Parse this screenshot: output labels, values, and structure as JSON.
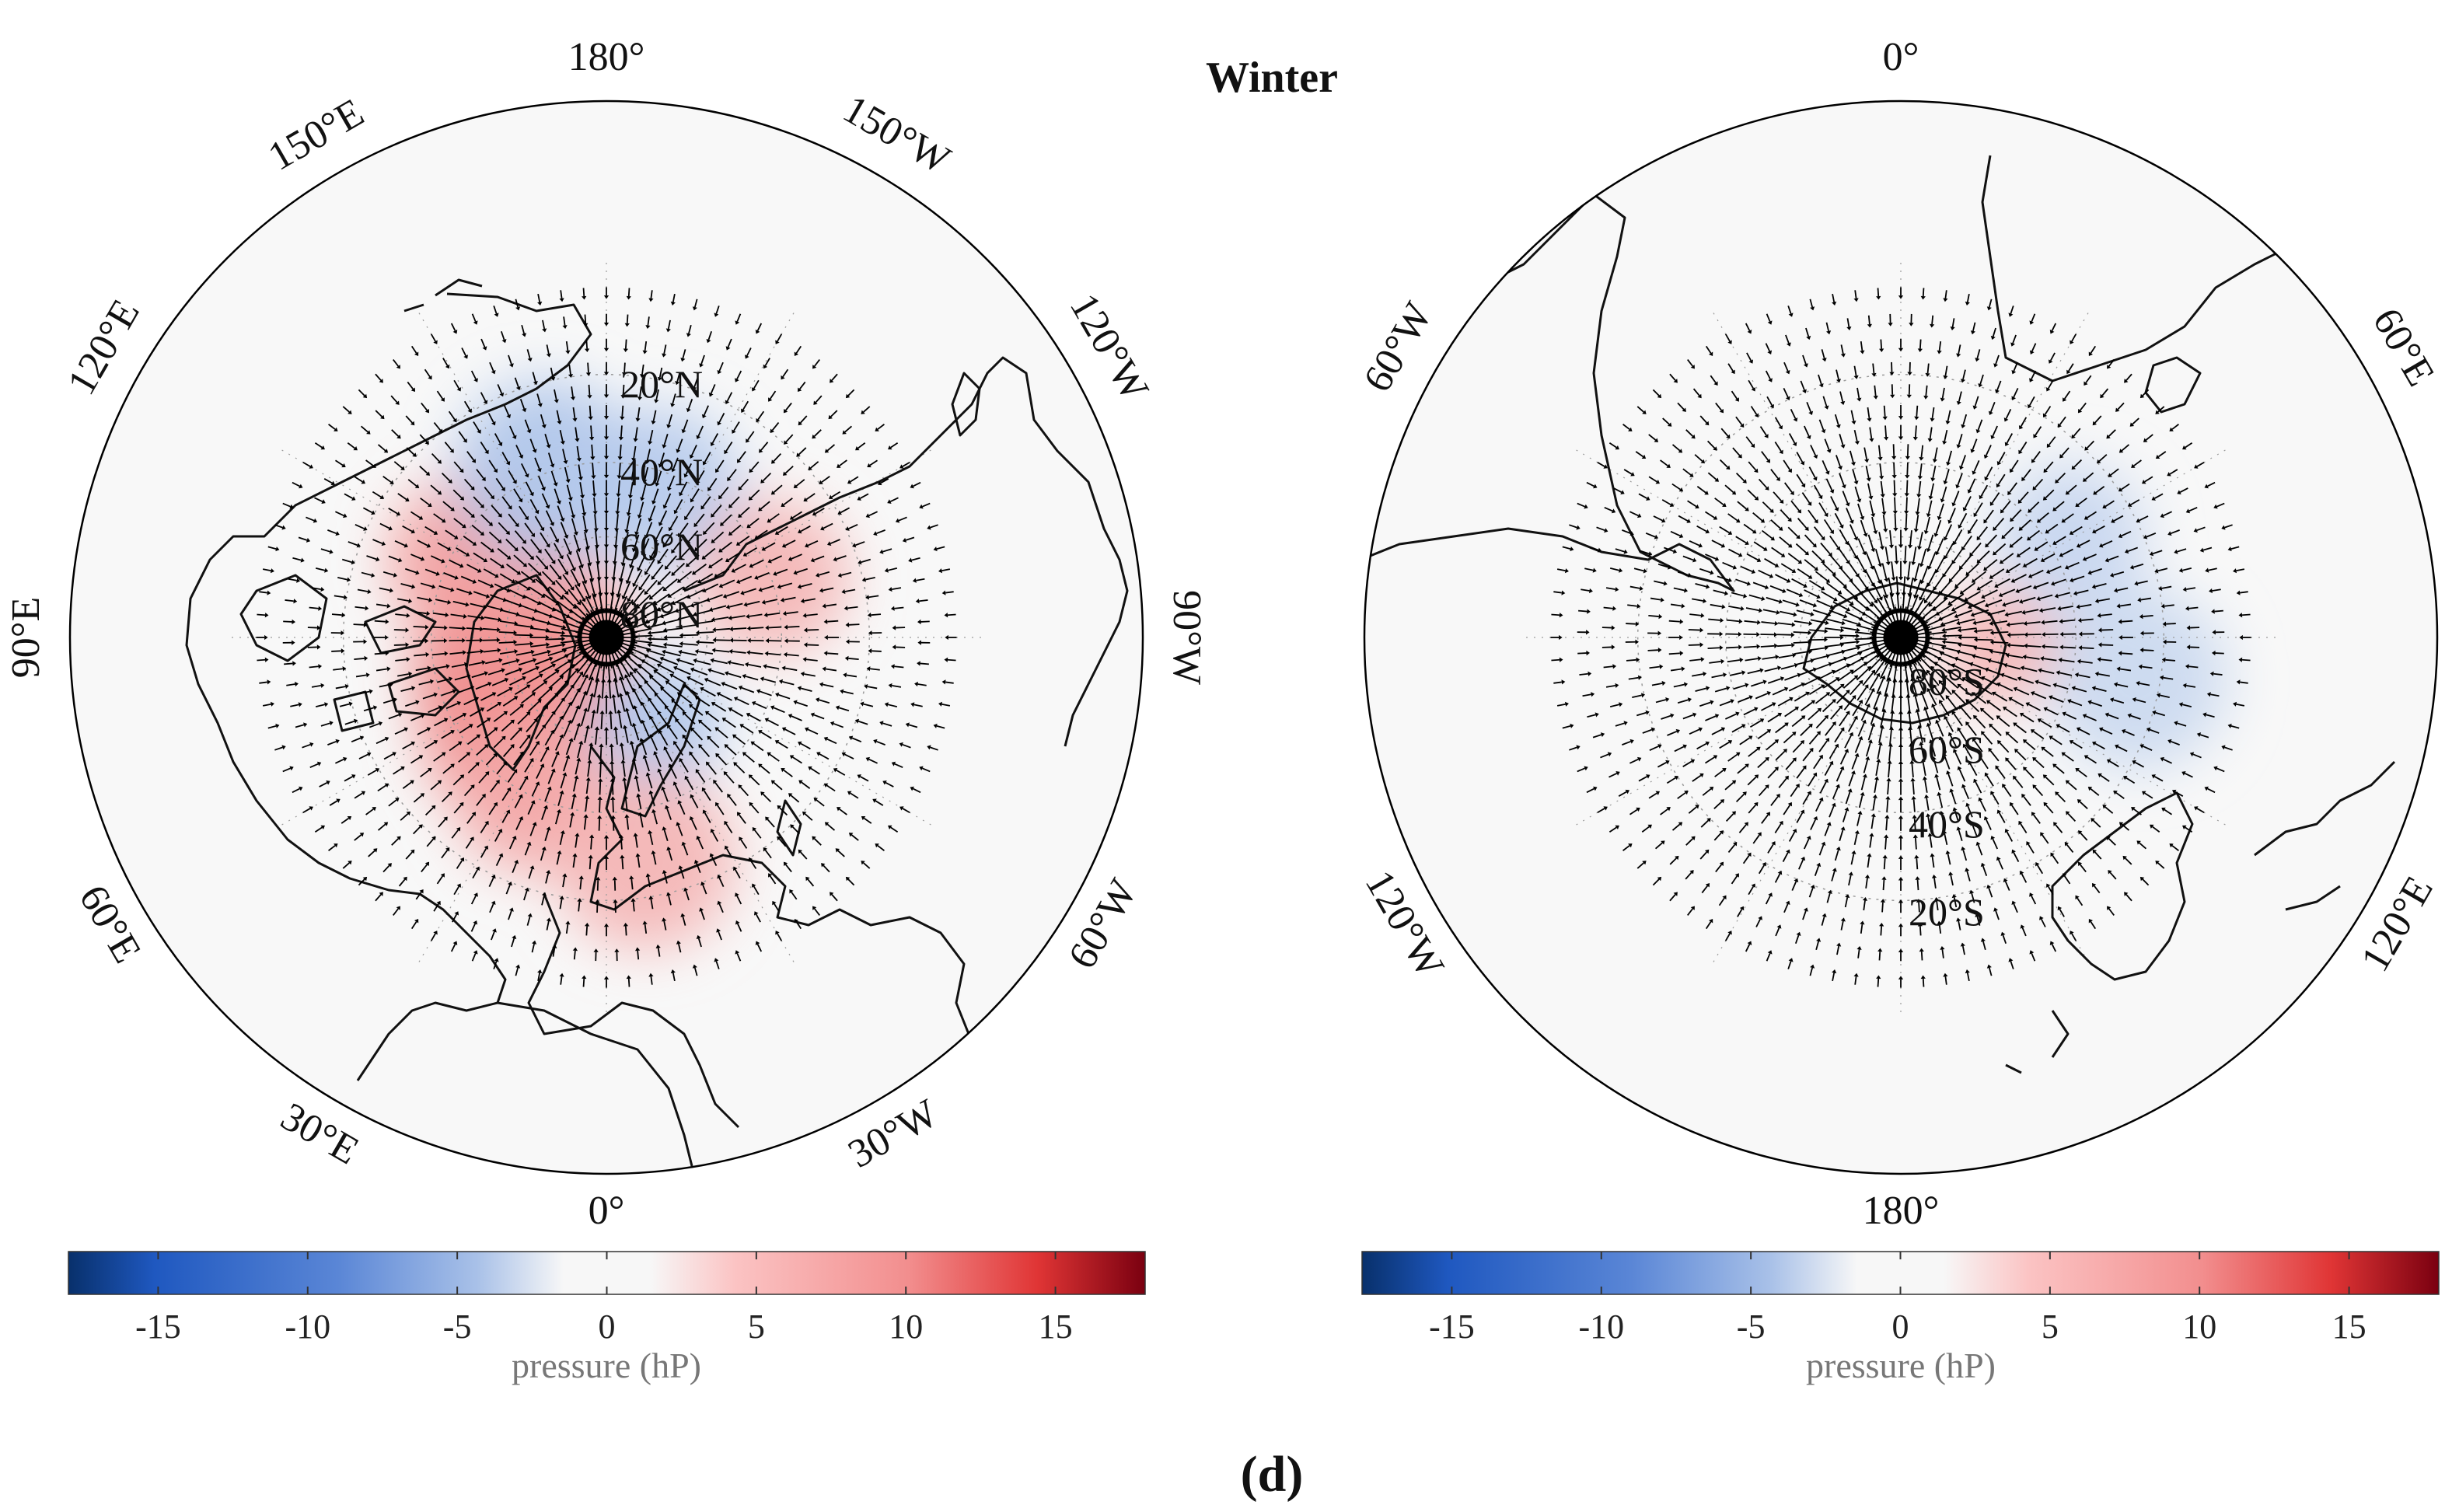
{
  "figure": {
    "title": "Winter",
    "panel_label": "(d)"
  },
  "maps": [
    {
      "id": "north",
      "hemisphere": "N",
      "lon_labels": [
        {
          "lon": 180,
          "text": "180°"
        },
        {
          "lon": 150,
          "text": "150°E"
        },
        {
          "lon": 120,
          "text": "120°E"
        },
        {
          "lon": 90,
          "text": "90°E"
        },
        {
          "lon": 60,
          "text": "60°E"
        },
        {
          "lon": 30,
          "text": "30°E"
        },
        {
          "lon": 0,
          "text": "0°"
        },
        {
          "lon": -30,
          "text": "30°W"
        },
        {
          "lon": -60,
          "text": "60°W"
        },
        {
          "lon": -90,
          "text": "90°W"
        },
        {
          "lon": -120,
          "text": "120°W"
        },
        {
          "lon": -150,
          "text": "150°W"
        }
      ],
      "lat_labels": [
        {
          "lat": 20,
          "text": "20°N"
        },
        {
          "lat": 40,
          "text": "40°N"
        },
        {
          "lat": 60,
          "text": "60°N"
        },
        {
          "lat": 80,
          "text": "80°N"
        }
      ],
      "anomalies": [
        {
          "lat": 55,
          "lon": 70,
          "value": 12,
          "spread_deg": 14
        },
        {
          "lat": 65,
          "lon": 90,
          "value": 6,
          "spread_deg": 22
        },
        {
          "lat": 50,
          "lon": 45,
          "value": 6,
          "spread_deg": 16
        },
        {
          "lat": 40,
          "lon": 25,
          "value": 4,
          "spread_deg": 12
        },
        {
          "lat": 45,
          "lon": 120,
          "value": 5,
          "spread_deg": 14
        },
        {
          "lat": 40,
          "lon": 160,
          "value": -5,
          "spread_deg": 16
        },
        {
          "lat": 45,
          "lon": -160,
          "value": -4,
          "spread_deg": 14
        },
        {
          "lat": 60,
          "lon": -30,
          "value": -5,
          "spread_deg": 10
        },
        {
          "lat": 28,
          "lon": -10,
          "value": 3,
          "spread_deg": 14
        },
        {
          "lat": 40,
          "lon": -110,
          "value": 3,
          "spread_deg": 12
        }
      ],
      "colorbar": {
        "min": -18,
        "max": 18,
        "ticks": [
          -15,
          -10,
          -5,
          0,
          5,
          10,
          15
        ],
        "tick_labels": [
          "-15",
          "-10",
          "-5",
          "0",
          "5",
          "10",
          "15"
        ],
        "label": "pressure (hP)"
      }
    },
    {
      "id": "south",
      "hemisphere": "S",
      "lon_labels": [
        {
          "lon": 0,
          "text": "0°"
        },
        {
          "lon": 60,
          "text": "60°E"
        },
        {
          "lon": 120,
          "text": "120°E"
        },
        {
          "lon": 180,
          "text": "180°"
        },
        {
          "lon": -120,
          "text": "120°W"
        },
        {
          "lon": -60,
          "text": "60°W"
        }
      ],
      "lat_labels": [
        {
          "lat": -80,
          "text": "80°S"
        },
        {
          "lat": -60,
          "text": "60°S"
        },
        {
          "lat": -40,
          "text": "40°S"
        },
        {
          "lat": -20,
          "text": "20°S"
        }
      ],
      "anomalies": [
        {
          "lat": -60,
          "lon": 95,
          "value": 3,
          "spread_deg": 8
        },
        {
          "lat": -35,
          "lon": 60,
          "value": -2,
          "spread_deg": 10
        },
        {
          "lat": -25,
          "lon": 100,
          "value": -1.5,
          "spread_deg": 12
        }
      ],
      "colorbar": {
        "min": -18,
        "max": 18,
        "ticks": [
          -15,
          -10,
          -5,
          0,
          5,
          10,
          15
        ],
        "tick_labels": [
          "-15",
          "-10",
          "-5",
          "0",
          "5",
          "10",
          "15"
        ],
        "label": "pressure (hP)"
      }
    }
  ],
  "colors": {
    "map_background": "#f8f8f8",
    "outline": "#000000",
    "coastline": "#111111",
    "arrow": "#000000",
    "grid": "#9a9a9a",
    "colormap": [
      "#08306b",
      "#1f58c0",
      "#5a86d6",
      "#a9c1e8",
      "#f7f7f7",
      "#f7f7f7",
      "#fbc3c3",
      "#f28e8e",
      "#e03535",
      "#7a0010"
    ]
  }
}
